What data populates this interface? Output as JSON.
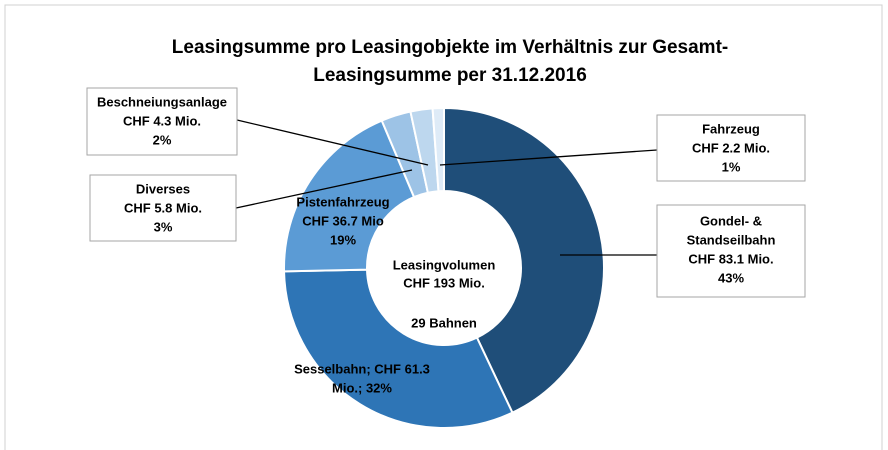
{
  "chart_data": {
    "type": "pie",
    "title": [
      "Leasingsumme pro Leasingobjekte im Verhältnis zur Gesamt-",
      "Leasingsumme per 31.12.2016"
    ],
    "values": [
      83.1,
      61.3,
      36.7,
      5.8,
      4.3,
      2.2
    ],
    "labels": [
      [
        "Gondel- &",
        "Standseilbahn",
        "CHF 83.1 Mio.",
        "43%"
      ],
      [
        "Sesselbahn; CHF 61.3",
        "Mio.; 32%"
      ],
      [
        "Pistenfahrzeug",
        "CHF 36.7 Mio",
        "19%"
      ],
      [
        "Diverses",
        "CHF 5.8 Mio.",
        "3%"
      ],
      [
        "Beschneiungsanlage",
        "CHF 4.3 Mio.",
        "2%"
      ],
      [
        "Fahrzeug",
        "CHF 2.2 Mio.",
        "1%"
      ]
    ],
    "colors": [
      "#1f4e79",
      "#2e75b6",
      "#5b9bd5",
      "#9dc3e6",
      "#bdd7ee",
      "#deebf7"
    ],
    "center_text": [
      "Leasingvolumen",
      "CHF 193 Mio."
    ],
    "center_note": "29 Bahnen"
  }
}
